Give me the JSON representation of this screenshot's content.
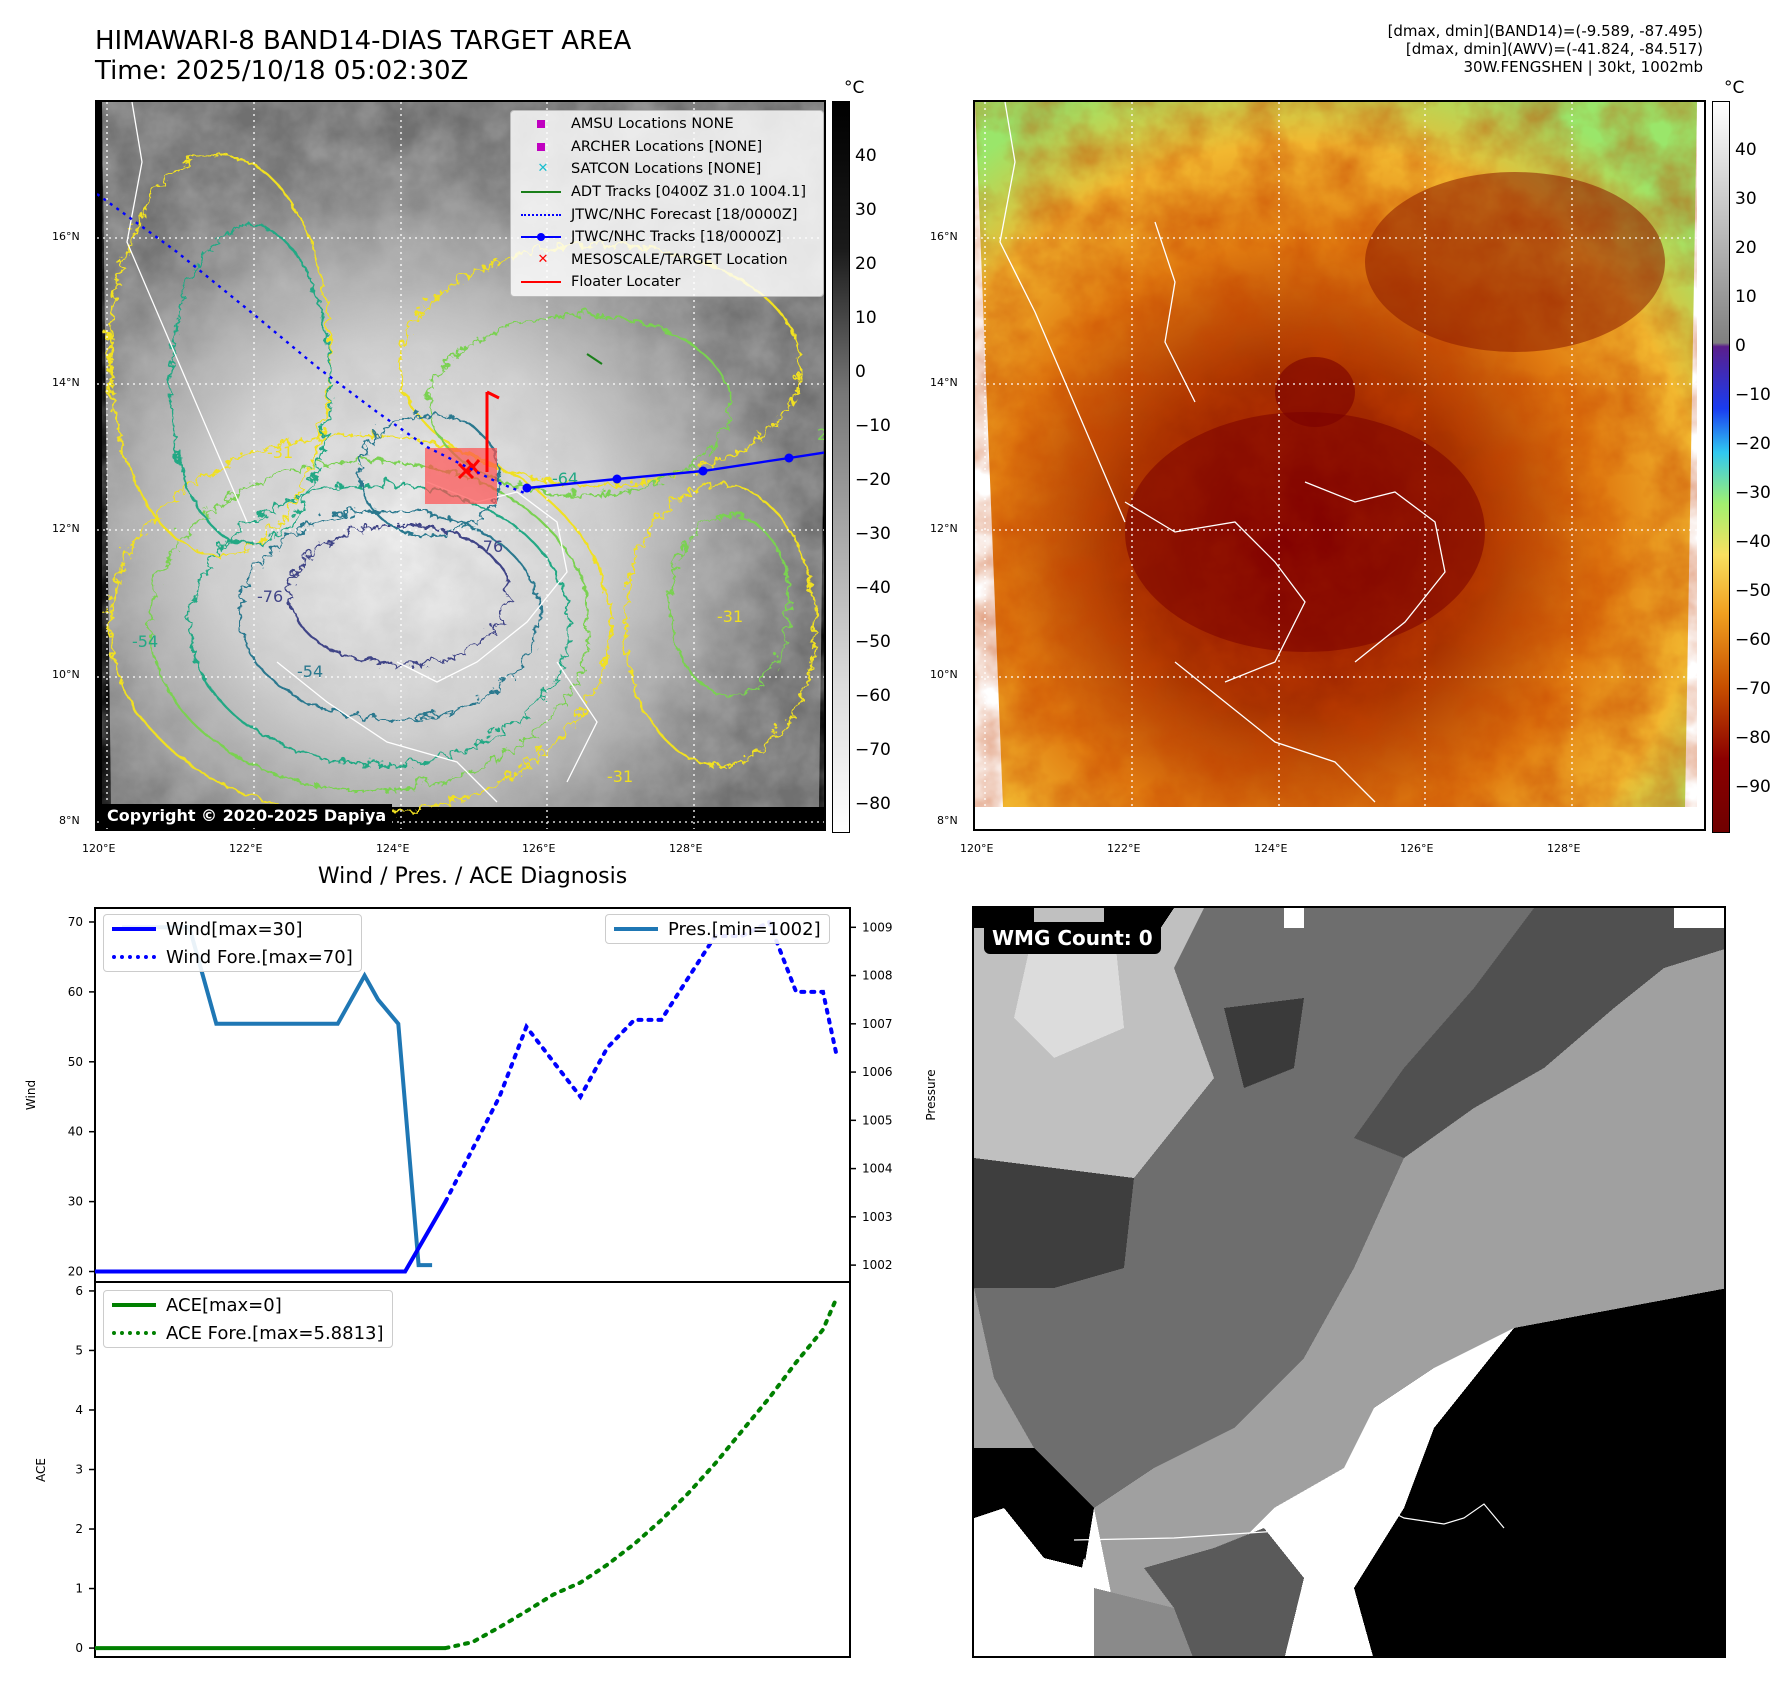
{
  "header": {
    "title_line1": "HIMAWARI-8 BAND14-DIAS TARGET AREA",
    "title_line2": "Time: 2025/10/18 05:02:30Z",
    "stats_line1": "[dmax, dmin](BAND14)=(-9.589, -87.495)",
    "stats_line2": "[dmax, dmin](AWV)=(-41.824, -84.517)",
    "stats_line3": "30W.FENGSHEN | 30kt, 1002mb"
  },
  "map_axes": {
    "lon_labels": [
      "120°E",
      "122°E",
      "124°E",
      "126°E",
      "128°E"
    ],
    "lat_labels": [
      "16°N",
      "14°N",
      "12°N",
      "10°N",
      "8°N"
    ]
  },
  "colorbar_left": {
    "unit": "°C",
    "ticks": [
      "40",
      "30",
      "20",
      "10",
      "0",
      "−10",
      "−20",
      "−30",
      "−40",
      "−50",
      "−60",
      "−70",
      "−80"
    ]
  },
  "colorbar_right": {
    "unit": "°C",
    "ticks": [
      "40",
      "30",
      "20",
      "10",
      "0",
      "−10",
      "−20",
      "−30",
      "−40",
      "−50",
      "−60",
      "−70",
      "−80",
      "−90"
    ]
  },
  "legend": [
    {
      "label": "AMSU Locations NONE",
      "marker": "square",
      "color": "#c000c0"
    },
    {
      "label": "ARCHER Locations [NONE]",
      "marker": "square",
      "color": "#c000c0"
    },
    {
      "label": "SATCON Locations [NONE]",
      "marker": "x",
      "color": "#17becf"
    },
    {
      "label": "ADT Tracks [0400Z 31.0 1004.1]",
      "marker": "line",
      "color": "#1a7f1a"
    },
    {
      "label": "JTWC/NHC Forecast [18/0000Z]",
      "marker": "dotted",
      "color": "#0000ff"
    },
    {
      "label": "JTWC/NHC Tracks [18/0000Z]",
      "marker": "line-dot",
      "color": "#0000ff"
    },
    {
      "label": "MESOSCALE/TARGET Location",
      "marker": "x",
      "color": "#ff0000"
    },
    {
      "label": "Floater Locater",
      "marker": "line",
      "color": "#ff0000"
    }
  ],
  "copyright": "Copyright © 2020-2025 Dapiya",
  "contour_labels": [
    "-64",
    "-31",
    "-76",
    "-54",
    "-31",
    "-76",
    "-54",
    "-31",
    "2"
  ],
  "wmg": {
    "label": "WMG Count: 0"
  },
  "colors": {
    "wind": "#0000ff",
    "pressure": "#1f77b4",
    "ace": "#008000",
    "track": "#0000ff"
  },
  "chart_data": [
    {
      "type": "line",
      "title": "Wind / Pres. / ACE Diagnosis",
      "ylabel": "Wind",
      "ylim": [
        18.5,
        72
      ],
      "yticks": [
        20,
        30,
        40,
        50,
        60,
        70
      ],
      "y2label": "Pressure",
      "y2lim": [
        1001.65,
        1009.4
      ],
      "y2ticks": [
        1002,
        1003,
        1004,
        1005,
        1006,
        1007,
        1008,
        1009
      ],
      "xlim": [
        0,
        56
      ],
      "series": [
        {
          "name": "Wind[max=30]",
          "style": "solid",
          "axis": "left",
          "x": [
            0,
            23,
            26
          ],
          "y": [
            20,
            20,
            30
          ]
        },
        {
          "name": "Wind Fore.[max=70]",
          "style": "dotted",
          "axis": "left",
          "x": [
            26,
            30,
            32,
            34,
            36,
            38,
            40,
            42,
            44,
            46,
            48,
            50,
            52,
            54,
            55
          ],
          "y": [
            30,
            45,
            55,
            50,
            45,
            52,
            56,
            56,
            62,
            68,
            68,
            70,
            60,
            60,
            51
          ]
        },
        {
          "name": "Pres.[min=1002]",
          "style": "solid",
          "axis": "right",
          "x": [
            2,
            7,
            9,
            18,
            19,
            20,
            21,
            22.5,
            24,
            25
          ],
          "y": [
            1009,
            1009,
            1007,
            1007,
            1007.5,
            1008,
            1007.5,
            1007,
            1002,
            1002
          ]
        }
      ]
    },
    {
      "type": "line",
      "ylabel": "ACE",
      "ylim": [
        -0.15,
        6.15
      ],
      "yticks": [
        0,
        1,
        2,
        3,
        4,
        5,
        6
      ],
      "xlim": [
        0,
        56
      ],
      "series": [
        {
          "name": "ACE[max=0]",
          "style": "solid",
          "x": [
            0,
            26
          ],
          "y": [
            0,
            0
          ]
        },
        {
          "name": "ACE Fore.[max=5.8813]",
          "style": "dotted",
          "x": [
            26,
            28,
            30,
            32,
            34,
            36,
            38,
            40,
            42,
            44,
            46,
            48,
            50,
            52,
            54,
            55
          ],
          "y": [
            0,
            0.1,
            0.35,
            0.62,
            0.9,
            1.1,
            1.4,
            1.75,
            2.15,
            2.6,
            3.1,
            3.65,
            4.2,
            4.8,
            5.35,
            5.88
          ]
        }
      ]
    }
  ]
}
